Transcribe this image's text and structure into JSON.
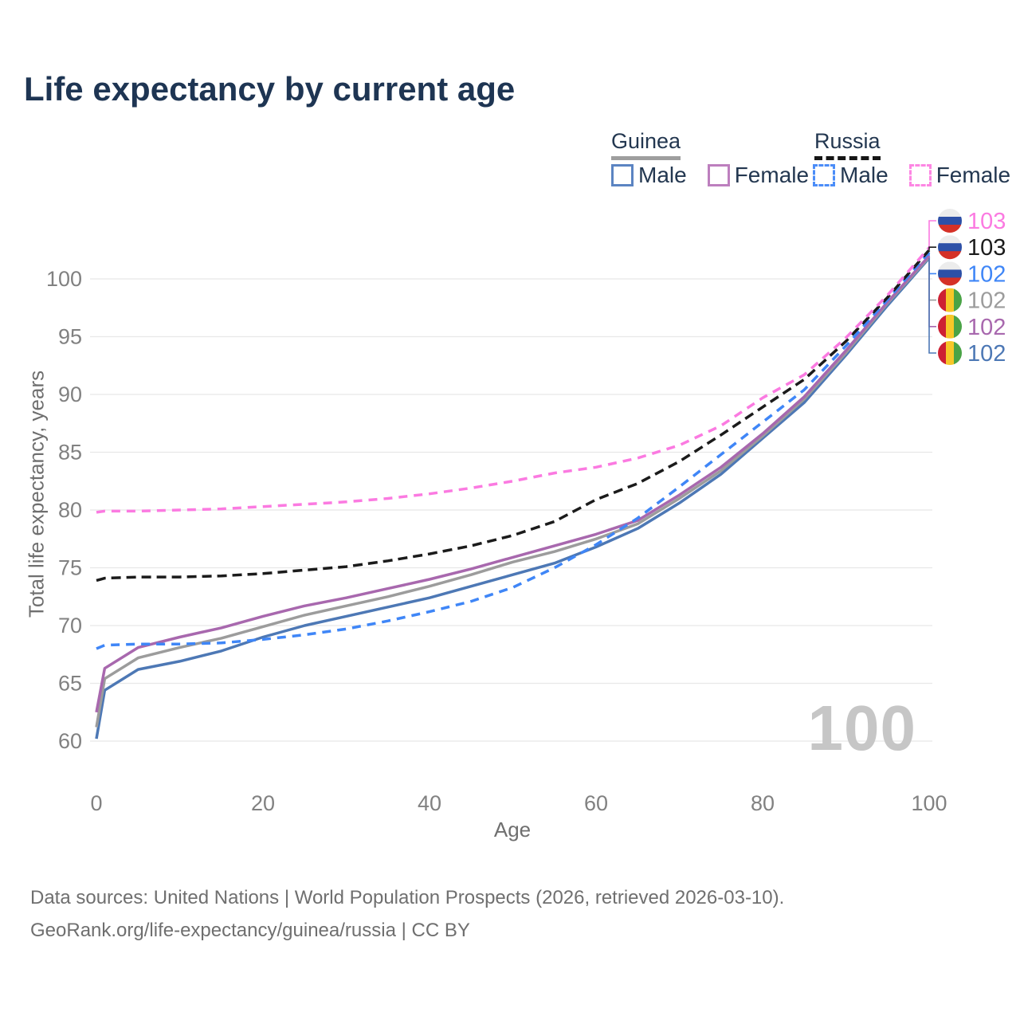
{
  "title": "Life expectancy by current age",
  "legend": {
    "guinea": {
      "label": "Guinea",
      "underline_style": "solid",
      "items": [
        {
          "label": "Male",
          "color": "#5b84c2",
          "style": "solid"
        },
        {
          "label": "Female",
          "color": "#bd7fbe",
          "style": "solid"
        }
      ]
    },
    "russia": {
      "label": "Russia",
      "underline_style": "dashed",
      "items": [
        {
          "label": "Male",
          "color": "#4b8df8",
          "style": "dashed"
        },
        {
          "label": "Female",
          "color": "#fd86e3",
          "style": "dashed"
        }
      ]
    }
  },
  "chart_data": {
    "type": "line",
    "title": "Life expectancy by current age",
    "xlabel": "Age",
    "ylabel": "Total life expectancy, years",
    "x_ticks": [
      0,
      20,
      40,
      60,
      80,
      100
    ],
    "y_ticks": [
      60,
      65,
      70,
      75,
      80,
      85,
      90,
      95,
      100
    ],
    "xlim": [
      0,
      100
    ],
    "ylim": [
      60,
      103.5
    ],
    "grid": true,
    "watermark": "100",
    "x": [
      0,
      1,
      5,
      10,
      15,
      20,
      25,
      30,
      35,
      40,
      45,
      50,
      55,
      60,
      65,
      70,
      75,
      80,
      85,
      90,
      95,
      100
    ],
    "series": [
      {
        "name": "Russia Female",
        "country": "russia",
        "color": "#fb7ae1",
        "dash": [
          11,
          8
        ],
        "end_label": "103",
        "values": [
          79.8,
          79.9,
          79.9,
          80.0,
          80.1,
          80.3,
          80.5,
          80.7,
          81.0,
          81.4,
          81.9,
          82.5,
          83.2,
          83.7,
          84.5,
          85.6,
          87.3,
          89.7,
          91.7,
          94.9,
          98.6,
          102.7
        ]
      },
      {
        "name": "Russia Total",
        "country": "russia",
        "color": "#1b1b1b",
        "dash": [
          12,
          7
        ],
        "end_label": "103",
        "values": [
          73.9,
          74.1,
          74.2,
          74.2,
          74.3,
          74.5,
          74.8,
          75.1,
          75.6,
          76.2,
          76.9,
          77.8,
          79.0,
          80.9,
          82.3,
          84.2,
          86.5,
          88.9,
          91.3,
          94.6,
          98.4,
          102.5
        ]
      },
      {
        "name": "Russia Male",
        "country": "russia",
        "color": "#3f86f7",
        "dash": [
          11,
          8
        ],
        "end_label": "102",
        "values": [
          68.0,
          68.3,
          68.4,
          68.4,
          68.5,
          68.8,
          69.2,
          69.7,
          70.4,
          71.2,
          72.1,
          73.3,
          75.0,
          77.0,
          79.3,
          82.0,
          84.8,
          87.6,
          90.4,
          94.2,
          98.2,
          102.3
        ]
      },
      {
        "name": "Guinea Total",
        "country": "guinea",
        "color": "#9c9c9c",
        "dash": null,
        "end_label": "102",
        "values": [
          61.2,
          65.4,
          67.2,
          68.1,
          68.9,
          69.9,
          70.9,
          71.7,
          72.5,
          73.4,
          74.4,
          75.5,
          76.4,
          77.5,
          78.8,
          81.0,
          83.4,
          86.4,
          89.6,
          93.6,
          97.9,
          101.9
        ]
      },
      {
        "name": "Guinea Female",
        "country": "guinea",
        "color": "#a868ae",
        "dash": null,
        "end_label": "102",
        "values": [
          62.5,
          66.3,
          68.1,
          69.0,
          69.8,
          70.8,
          71.7,
          72.4,
          73.2,
          74.0,
          74.9,
          75.9,
          76.9,
          77.9,
          79.1,
          81.3,
          83.7,
          86.6,
          89.8,
          93.8,
          98.0,
          102.0
        ]
      },
      {
        "name": "Guinea Male",
        "country": "guinea",
        "color": "#4d78b5",
        "dash": null,
        "end_label": "102",
        "values": [
          60.2,
          64.4,
          66.2,
          66.9,
          67.8,
          69.0,
          70.0,
          70.8,
          71.6,
          72.4,
          73.4,
          74.4,
          75.4,
          76.8,
          78.4,
          80.6,
          83.1,
          86.2,
          89.3,
          93.4,
          97.7,
          101.8
        ]
      }
    ],
    "flag_colors": {
      "russia": [
        "#ececec",
        "#2d50a7",
        "#d53127"
      ],
      "guinea": [
        "#cd2033",
        "#f7c728",
        "#4aa346"
      ]
    }
  },
  "footer": {
    "line1": "Data sources: United Nations | World Population Prospects (2026, retrieved 2026-03-10).",
    "line2": "GeoRank.org/life-expectancy/guinea/russia | CC BY"
  }
}
